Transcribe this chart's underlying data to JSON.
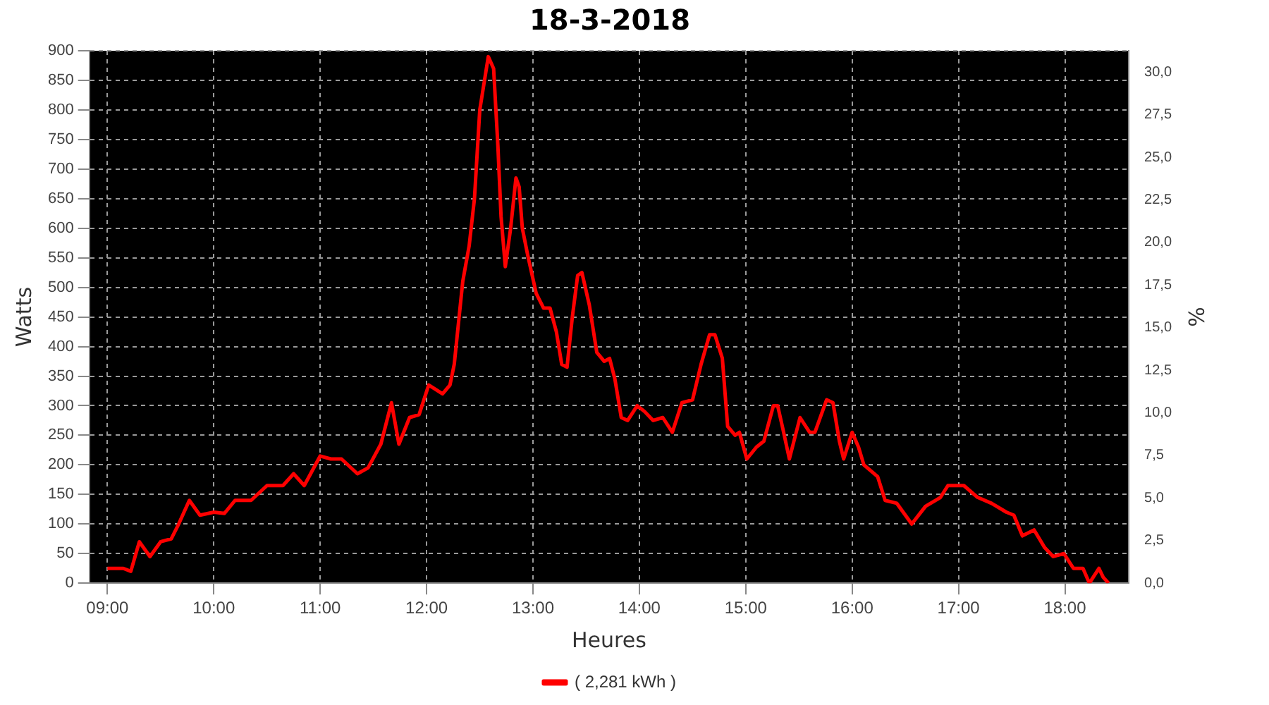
{
  "chart_data": {
    "type": "line",
    "title": "18-3-2018",
    "xlabel": "Heures",
    "ylabel": "Watts",
    "y2label": "%",
    "xlim": [
      8.83,
      18.6
    ],
    "xticks": [
      {
        "value": 9,
        "label": "09:00"
      },
      {
        "value": 10,
        "label": "10:00"
      },
      {
        "value": 11,
        "label": "11:00"
      },
      {
        "value": 12,
        "label": "12:00"
      },
      {
        "value": 13,
        "label": "13:00"
      },
      {
        "value": 14,
        "label": "14:00"
      },
      {
        "value": 15,
        "label": "15:00"
      },
      {
        "value": 16,
        "label": "16:00"
      },
      {
        "value": 17,
        "label": "17:00"
      },
      {
        "value": 18,
        "label": "18:00"
      }
    ],
    "ylim": [
      0,
      900
    ],
    "yticks": [
      0,
      50,
      100,
      150,
      200,
      250,
      300,
      350,
      400,
      450,
      500,
      550,
      600,
      650,
      700,
      750,
      800,
      850,
      900
    ],
    "y2lim": [
      0,
      31.25
    ],
    "y2ticks": [
      {
        "value": 0,
        "label": "0,0"
      },
      {
        "value": 2.5,
        "label": "2,5"
      },
      {
        "value": 5,
        "label": "5,0"
      },
      {
        "value": 7.5,
        "label": "7,5"
      },
      {
        "value": 10,
        "label": "10,0"
      },
      {
        "value": 12.5,
        "label": "12,5"
      },
      {
        "value": 15,
        "label": "15,0"
      },
      {
        "value": 17.5,
        "label": "17,5"
      },
      {
        "value": 20,
        "label": "20,0"
      },
      {
        "value": 22.5,
        "label": "22,5"
      },
      {
        "value": 25,
        "label": "25,0"
      },
      {
        "value": 27.5,
        "label": "27,5"
      },
      {
        "value": 30,
        "label": "30,0"
      }
    ],
    "grid": true,
    "legend": "bottom",
    "marker": "none",
    "line_style": "solid",
    "series": [
      {
        "name": "( 2,281 kWh )",
        "color": "#ff0000",
        "x": [
          9.0,
          9.15,
          9.22,
          9.3,
          9.4,
          9.5,
          9.6,
          9.67,
          9.77,
          9.87,
          10.0,
          10.1,
          10.2,
          10.35,
          10.5,
          10.65,
          10.75,
          10.85,
          11.0,
          11.1,
          11.2,
          11.35,
          11.45,
          11.57,
          11.67,
          11.74,
          11.84,
          11.93,
          12.02,
          12.15,
          12.22,
          12.26,
          12.34,
          12.4,
          12.45,
          12.5,
          12.58,
          12.63,
          12.67,
          12.7,
          12.74,
          12.79,
          12.84,
          12.87,
          12.9,
          12.95,
          13.03,
          13.1,
          13.16,
          13.22,
          13.27,
          13.32,
          13.37,
          13.42,
          13.46,
          13.53,
          13.6,
          13.67,
          13.72,
          13.77,
          13.83,
          13.89,
          13.98,
          14.05,
          14.13,
          14.22,
          14.31,
          14.4,
          14.5,
          14.58,
          14.66,
          14.71,
          14.78,
          14.83,
          14.9,
          14.94,
          15.01,
          15.1,
          15.17,
          15.26,
          15.3,
          15.35,
          15.41,
          15.51,
          15.6,
          15.65,
          15.76,
          15.82,
          15.88,
          15.92,
          16.0,
          16.06,
          16.11,
          16.24,
          16.31,
          16.42,
          16.56,
          16.69,
          16.83,
          16.9,
          17.05,
          17.18,
          17.31,
          17.45,
          17.52,
          17.6,
          17.71,
          17.81,
          17.89,
          17.99,
          18.08,
          18.17,
          18.23,
          18.32,
          18.36,
          18.41
        ],
        "values": [
          25,
          25,
          20,
          70,
          45,
          70,
          75,
          100,
          140,
          115,
          120,
          118,
          140,
          140,
          165,
          165,
          185,
          165,
          215,
          210,
          210,
          185,
          195,
          235,
          305,
          235,
          280,
          285,
          335,
          320,
          335,
          370,
          510,
          570,
          650,
          800,
          890,
          870,
          740,
          620,
          535,
          600,
          685,
          670,
          600,
          555,
          490,
          465,
          465,
          425,
          370,
          365,
          450,
          520,
          525,
          470,
          390,
          375,
          380,
          345,
          280,
          275,
          300,
          290,
          275,
          280,
          255,
          305,
          310,
          370,
          420,
          420,
          380,
          265,
          250,
          255,
          210,
          230,
          240,
          300,
          300,
          260,
          210,
          280,
          255,
          255,
          310,
          305,
          240,
          210,
          255,
          230,
          200,
          180,
          140,
          135,
          100,
          130,
          145,
          165,
          165,
          145,
          135,
          120,
          115,
          80,
          90,
          60,
          45,
          50,
          25,
          25,
          0,
          25,
          10,
          0
        ]
      }
    ]
  }
}
